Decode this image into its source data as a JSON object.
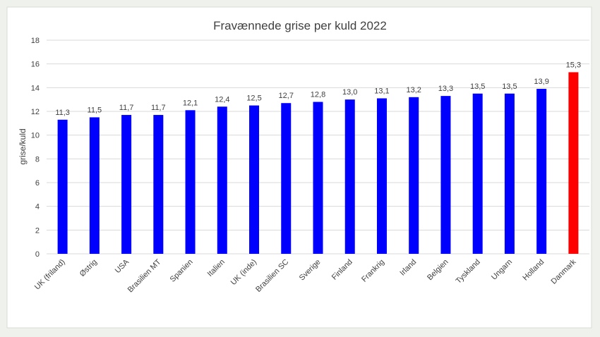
{
  "chart_data": {
    "type": "bar",
    "title": "Fravænnede grise per kuld 2022",
    "y_label": "grise/kuld",
    "categories": [
      "UK (friland)",
      "Østrig",
      "USA",
      "Brasilien MT",
      "Spanien",
      "Italien",
      "UK (inde)",
      "Brasilien SC",
      "Sverige",
      "Finland",
      "Frankrig",
      "Irland",
      "Belgien",
      "Tyskland",
      "Ungarn",
      "Holland",
      "Danmark"
    ],
    "values": [
      11.3,
      11.5,
      11.7,
      11.7,
      12.1,
      12.4,
      12.5,
      12.7,
      12.8,
      13.0,
      13.1,
      13.2,
      13.3,
      13.5,
      13.5,
      13.9,
      15.3
    ],
    "value_labels": [
      "11,3",
      "11,5",
      "11,7",
      "11,7",
      "12,1",
      "12,4",
      "12,5",
      "12,7",
      "12,8",
      "13,0",
      "13,1",
      "13,2",
      "13,3",
      "13,5",
      "13,5",
      "13,9",
      "15,3"
    ],
    "colors": [
      "#0000ff",
      "#0000ff",
      "#0000ff",
      "#0000ff",
      "#0000ff",
      "#0000ff",
      "#0000ff",
      "#0000ff",
      "#0000ff",
      "#0000ff",
      "#0000ff",
      "#0000ff",
      "#0000ff",
      "#0000ff",
      "#0000ff",
      "#0000ff",
      "#ff0000"
    ],
    "ylim": [
      0,
      18
    ],
    "yticks": [
      0,
      2,
      4,
      6,
      8,
      10,
      12,
      14,
      16,
      18
    ],
    "grid": true
  }
}
